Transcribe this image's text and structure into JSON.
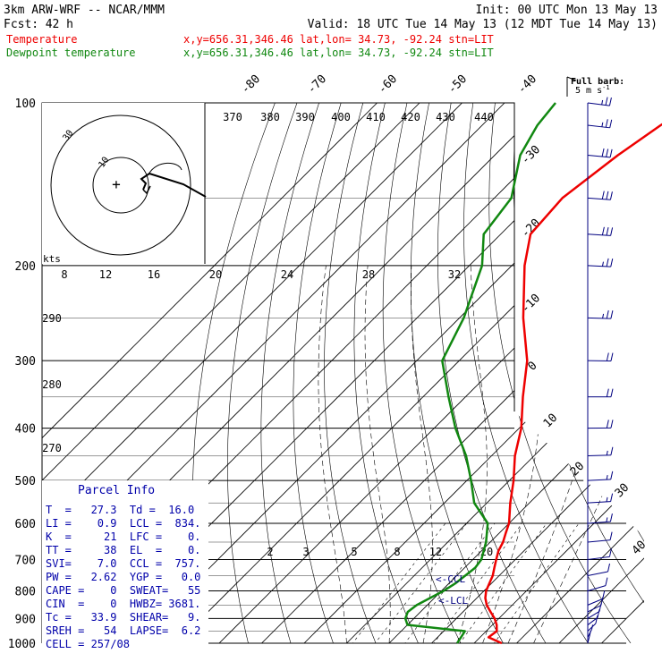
{
  "header": {
    "model": "3km ARW-WRF -- NCAR/MMM",
    "init": "Init: 00 UTC Mon 13 May 13",
    "fcst_label": "Fcst:",
    "fcst_value": "42 h",
    "valid": "Valid: 18 UTC Tue 14 May 13 (12 MDT Tue 14 May 13)",
    "temp_label": "Temperature",
    "temp_info": "x,y=656.31,346.46   lat,lon= 34.73, -92.24  stn=LIT",
    "dew_label": "Dewpoint temperature",
    "dew_info": "x,y=656.31,346.46   lat,lon= 34.73, -92.24  stn=LIT"
  },
  "colors": {
    "temperature": "#ee0000",
    "dewpoint": "#118811",
    "barbs": "#000080",
    "box_bg": "#ffffff",
    "box_text": "#0000aa"
  },
  "barb_legend": {
    "title": "Full barb:",
    "value": "5 m s",
    "sup": "-1"
  },
  "parcel_info": {
    "title": "Parcel Info",
    "rows": [
      "T  =   27.3  Td =  16.0",
      "LI =    0.9  LCL =  834.",
      "K  =     21  LFC =    0.",
      "TT =     38  EL  =    0.",
      "SVI=    7.0  CCL =  757.",
      "PW =   2.62  YGP =   0.0",
      "CAPE =    0  SWEAT=   55",
      "CIN  =    0  HWBZ= 3681.",
      "Tc =   33.9  SHEAR=   9.",
      "SREH =   54  LAPSE=  6.2",
      "CELL = 257/08"
    ]
  },
  "hodograph": {
    "units": "kts",
    "ring_labels": [
      "30",
      "10"
    ]
  },
  "annotations": {
    "ccl": "<-CCL",
    "lcl": "<-LCL"
  },
  "chart_data": {
    "type": "line",
    "title": "",
    "xlabel": "",
    "ylabel": "",
    "pressure_ticks": [
      100,
      200,
      300,
      400,
      500,
      600,
      700,
      800,
      900,
      1000
    ],
    "isotherm_labels": [
      "-80",
      "-70",
      "-60",
      "-50",
      "-40",
      "-30",
      "-20",
      "-10",
      "0",
      "10",
      "20",
      "30",
      "40"
    ],
    "theta_labels": [
      "370",
      "380",
      "390",
      "400",
      "410",
      "420",
      "430",
      "440"
    ],
    "mixing_ratio_top_labels": [
      "8",
      "12",
      "16",
      "20",
      "24",
      "28",
      "32"
    ],
    "mixing_ratio_low_labels": [
      "2",
      "3",
      "5",
      "8",
      "12",
      "20"
    ],
    "theta_left_labels": [
      "290",
      "280",
      "270"
    ],
    "series": [
      {
        "name": "Temperature",
        "points": [
          [
            1000,
            26.5
          ],
          [
            975,
            22
          ],
          [
            950,
            22.5
          ],
          [
            925,
            21
          ],
          [
            900,
            19
          ],
          [
            875,
            16.5
          ],
          [
            850,
            14
          ],
          [
            825,
            12
          ],
          [
            800,
            10.5
          ],
          [
            775,
            9.5
          ],
          [
            750,
            8.5
          ],
          [
            725,
            7
          ],
          [
            700,
            5.5
          ],
          [
            675,
            4
          ],
          [
            650,
            3
          ],
          [
            625,
            1.5
          ],
          [
            600,
            0
          ],
          [
            550,
            -4.5
          ],
          [
            500,
            -9
          ],
          [
            450,
            -14.5
          ],
          [
            400,
            -19.5
          ],
          [
            350,
            -26.5
          ],
          [
            300,
            -34
          ],
          [
            250,
            -45
          ],
          [
            200,
            -57
          ],
          [
            175,
            -63
          ],
          [
            150,
            -64
          ],
          [
            125,
            -61
          ],
          [
            110,
            -58
          ],
          [
            100,
            -55
          ]
        ]
      },
      {
        "name": "Dewpoint temperature",
        "points": [
          [
            1000,
            16
          ],
          [
            975,
            15.5
          ],
          [
            950,
            15
          ],
          [
            925,
            0
          ],
          [
            900,
            -2
          ],
          [
            875,
            -3
          ],
          [
            850,
            -2.5
          ],
          [
            825,
            -1
          ],
          [
            800,
            0.5
          ],
          [
            775,
            1.5
          ],
          [
            750,
            2
          ],
          [
            725,
            2.5
          ],
          [
            700,
            2
          ],
          [
            650,
            -1
          ],
          [
            600,
            -5
          ],
          [
            550,
            -13
          ],
          [
            500,
            -19
          ],
          [
            450,
            -26
          ],
          [
            400,
            -35
          ],
          [
            350,
            -44
          ],
          [
            300,
            -54
          ],
          [
            250,
            -59
          ],
          [
            200,
            -67
          ],
          [
            175,
            -74
          ],
          [
            150,
            -76
          ],
          [
            125,
            -84
          ],
          [
            110,
            -87
          ],
          [
            100,
            -88
          ]
        ]
      }
    ],
    "winds": [
      {
        "p": 1000,
        "dir": 185,
        "kt": 6
      },
      {
        "p": 975,
        "dir": 190,
        "kt": 8
      },
      {
        "p": 950,
        "dir": 200,
        "kt": 10
      },
      {
        "p": 925,
        "dir": 205,
        "kt": 12
      },
      {
        "p": 900,
        "dir": 210,
        "kt": 12
      },
      {
        "p": 875,
        "dir": 215,
        "kt": 11
      },
      {
        "p": 850,
        "dir": 220,
        "kt": 10
      },
      {
        "p": 800,
        "dir": 230,
        "kt": 10
      },
      {
        "p": 750,
        "dir": 240,
        "kt": 11
      },
      {
        "p": 700,
        "dir": 250,
        "kt": 12
      },
      {
        "p": 650,
        "dir": 255,
        "kt": 14
      },
      {
        "p": 600,
        "dir": 258,
        "kt": 15
      },
      {
        "p": 550,
        "dir": 260,
        "kt": 17
      },
      {
        "p": 500,
        "dir": 262,
        "kt": 18
      },
      {
        "p": 450,
        "dir": 265,
        "kt": 18
      },
      {
        "p": 400,
        "dir": 268,
        "kt": 20
      },
      {
        "p": 350,
        "dir": 270,
        "kt": 22
      },
      {
        "p": 300,
        "dir": 272,
        "kt": 24
      },
      {
        "p": 250,
        "dir": 275,
        "kt": 26
      },
      {
        "p": 200,
        "dir": 278,
        "kt": 28
      },
      {
        "p": 175,
        "dir": 280,
        "kt": 30
      },
      {
        "p": 150,
        "dir": 282,
        "kt": 32
      },
      {
        "p": 125,
        "dir": 285,
        "kt": 30
      },
      {
        "p": 110,
        "dir": 288,
        "kt": 28
      },
      {
        "p": 100,
        "dir": 290,
        "kt": 26
      }
    ]
  }
}
